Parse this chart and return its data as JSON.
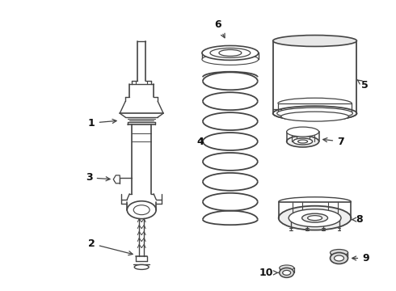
{
  "background_color": "#ffffff",
  "line_color": "#444444",
  "text_color": "#111111",
  "fig_width": 4.9,
  "fig_height": 3.6,
  "dpi": 100
}
